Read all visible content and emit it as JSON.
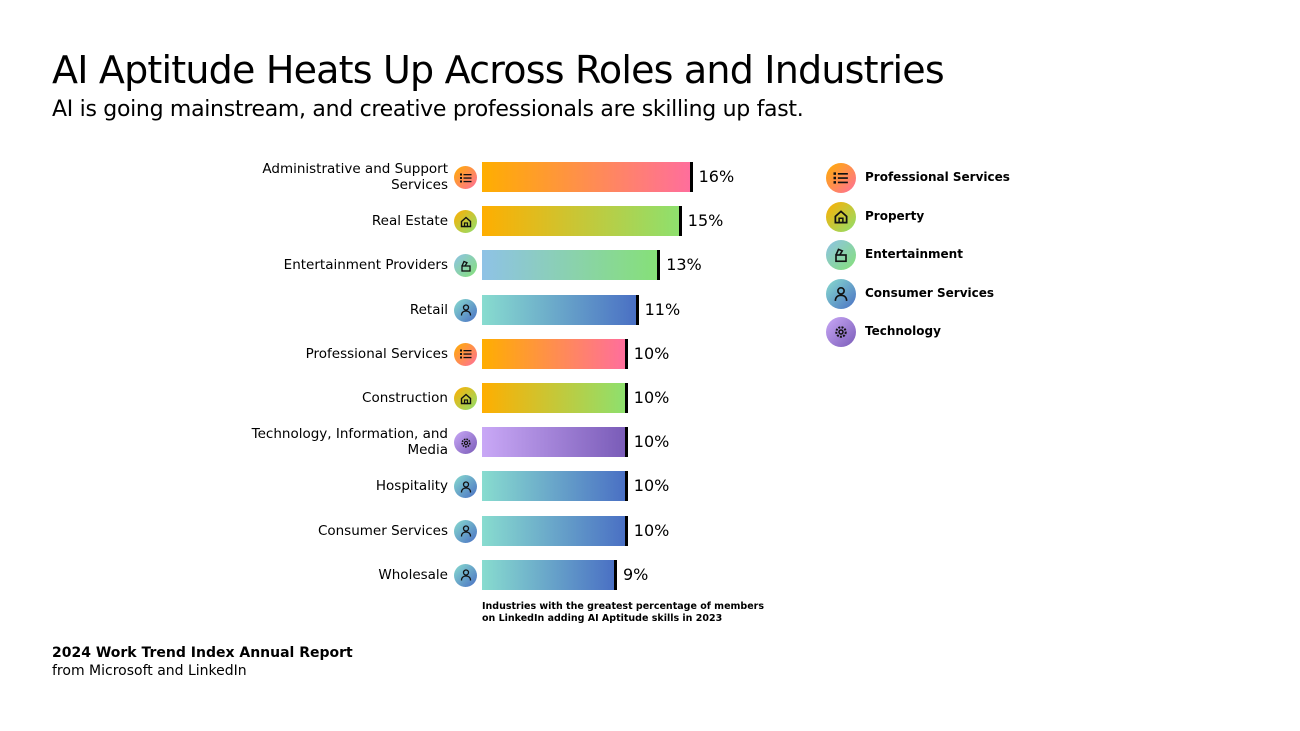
{
  "title": "AI Aptitude Heats Up Across Roles and Industries",
  "subtitle": "AI is going mainstream, and creative professionals are skilling up fast.",
  "footer": {
    "line1": "2024 Work Trend Index Annual Report",
    "line2": "from Microsoft and LinkedIn"
  },
  "chart_data": {
    "type": "bar",
    "orientation": "horizontal",
    "title": "Industries with the greatest percentage of members on LinkedIn adding AI Aptitude skills in 2023",
    "note_line1": "Industries with the greatest percentage of members",
    "note_line2": "on LinkedIn adding AI Aptitude skills in 2023",
    "categories": [
      "Administrative and Support Services",
      "Real Estate",
      "Entertainment Providers",
      "Retail",
      "Professional Services",
      "Construction",
      "Technology, Information, and Media",
      "Hospitality",
      "Consumer Services",
      "Wholesale"
    ],
    "values": [
      16,
      15,
      13,
      11,
      10,
      10,
      10,
      10,
      10,
      9
    ],
    "value_labels": [
      "16%",
      "15%",
      "13%",
      "11%",
      "10%",
      "10%",
      "10%",
      "10%",
      "10%",
      "9%"
    ],
    "groups": [
      "professional",
      "property",
      "entertainment",
      "consumer",
      "professional",
      "property",
      "technology",
      "consumer",
      "consumer",
      "consumer"
    ],
    "unit": "%",
    "legend_position": "right"
  },
  "legend": [
    {
      "key": "professional",
      "label": "Professional Services",
      "icon": "list-icon",
      "from": "#ffae00",
      "to": "#ff6e9c"
    },
    {
      "key": "property",
      "label": "Property",
      "icon": "house-icon",
      "from": "#ffae00",
      "to": "#8ee06e"
    },
    {
      "key": "entertainment",
      "label": "Entertainment",
      "icon": "clapperboard-icon",
      "from": "#8ec2e6",
      "to": "#86e078"
    },
    {
      "key": "consumer",
      "label": "Consumer Services",
      "icon": "person-icon",
      "from": "#88dccf",
      "to": "#4a70c4"
    },
    {
      "key": "technology",
      "label": "Technology",
      "icon": "gear-icon",
      "from": "#c9a8f6",
      "to": "#7a5cb8"
    }
  ]
}
